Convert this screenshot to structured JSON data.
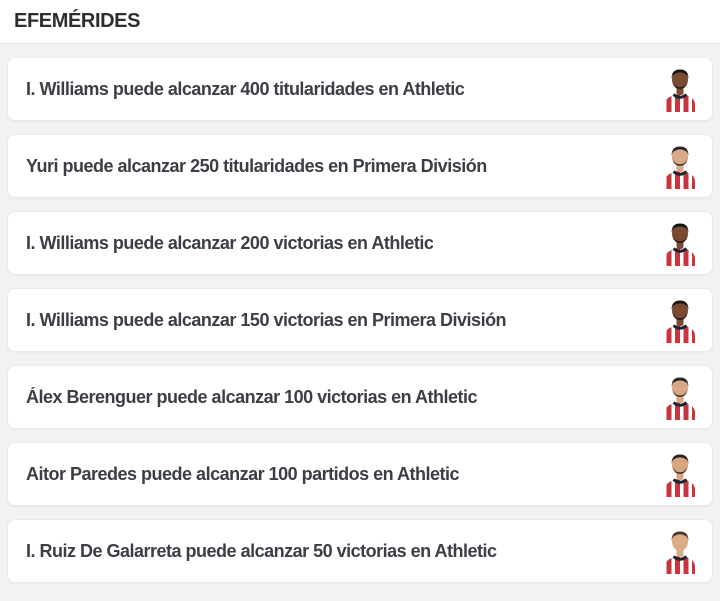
{
  "header": {
    "title": "EFEMÉRIDES"
  },
  "colors": {
    "jersey_red": "#c9353c",
    "jersey_white": "#ffffff",
    "collar_dark": "#1e2531",
    "text": "#3b3e45",
    "background": "#f2f2f2",
    "card_border": "#e9e9e9"
  },
  "rows": [
    {
      "text": "I. Williams puede alcanzar 400 titularidades en Athletic",
      "player": "I. Williams",
      "avatar": {
        "skin": "#7a4a32",
        "hair": "#17120e",
        "beard": true
      }
    },
    {
      "text": "Yuri puede alcanzar 250 titularidades en Primera División",
      "player": "Yuri",
      "avatar": {
        "skin": "#d9a886",
        "hair": "#2a2320",
        "beard": true
      }
    },
    {
      "text": "I. Williams puede alcanzar 200 victorias en Athletic",
      "player": "I. Williams",
      "avatar": {
        "skin": "#7a4a32",
        "hair": "#17120e",
        "beard": true
      }
    },
    {
      "text": "I. Williams puede alcanzar 150 victorias en Primera División",
      "player": "I. Williams",
      "avatar": {
        "skin": "#7a4a32",
        "hair": "#17120e",
        "beard": true
      }
    },
    {
      "text": "Álex Berenguer puede alcanzar 100 victorias en Athletic",
      "player": "Álex Berenguer",
      "avatar": {
        "skin": "#d9a886",
        "hair": "#2b221c",
        "beard": true
      }
    },
    {
      "text": "Aitor Paredes puede alcanzar 100 partidos en Athletic",
      "player": "Aitor Paredes",
      "avatar": {
        "skin": "#d8a57f",
        "hair": "#2b221c",
        "beard": true
      }
    },
    {
      "text": "I. Ruiz De Galarreta puede alcanzar 50 victorias en Athletic",
      "player": "I. Ruiz De Galarreta",
      "avatar": {
        "skin": "#dcab87",
        "hair": "#4a3626",
        "beard": false
      }
    }
  ]
}
